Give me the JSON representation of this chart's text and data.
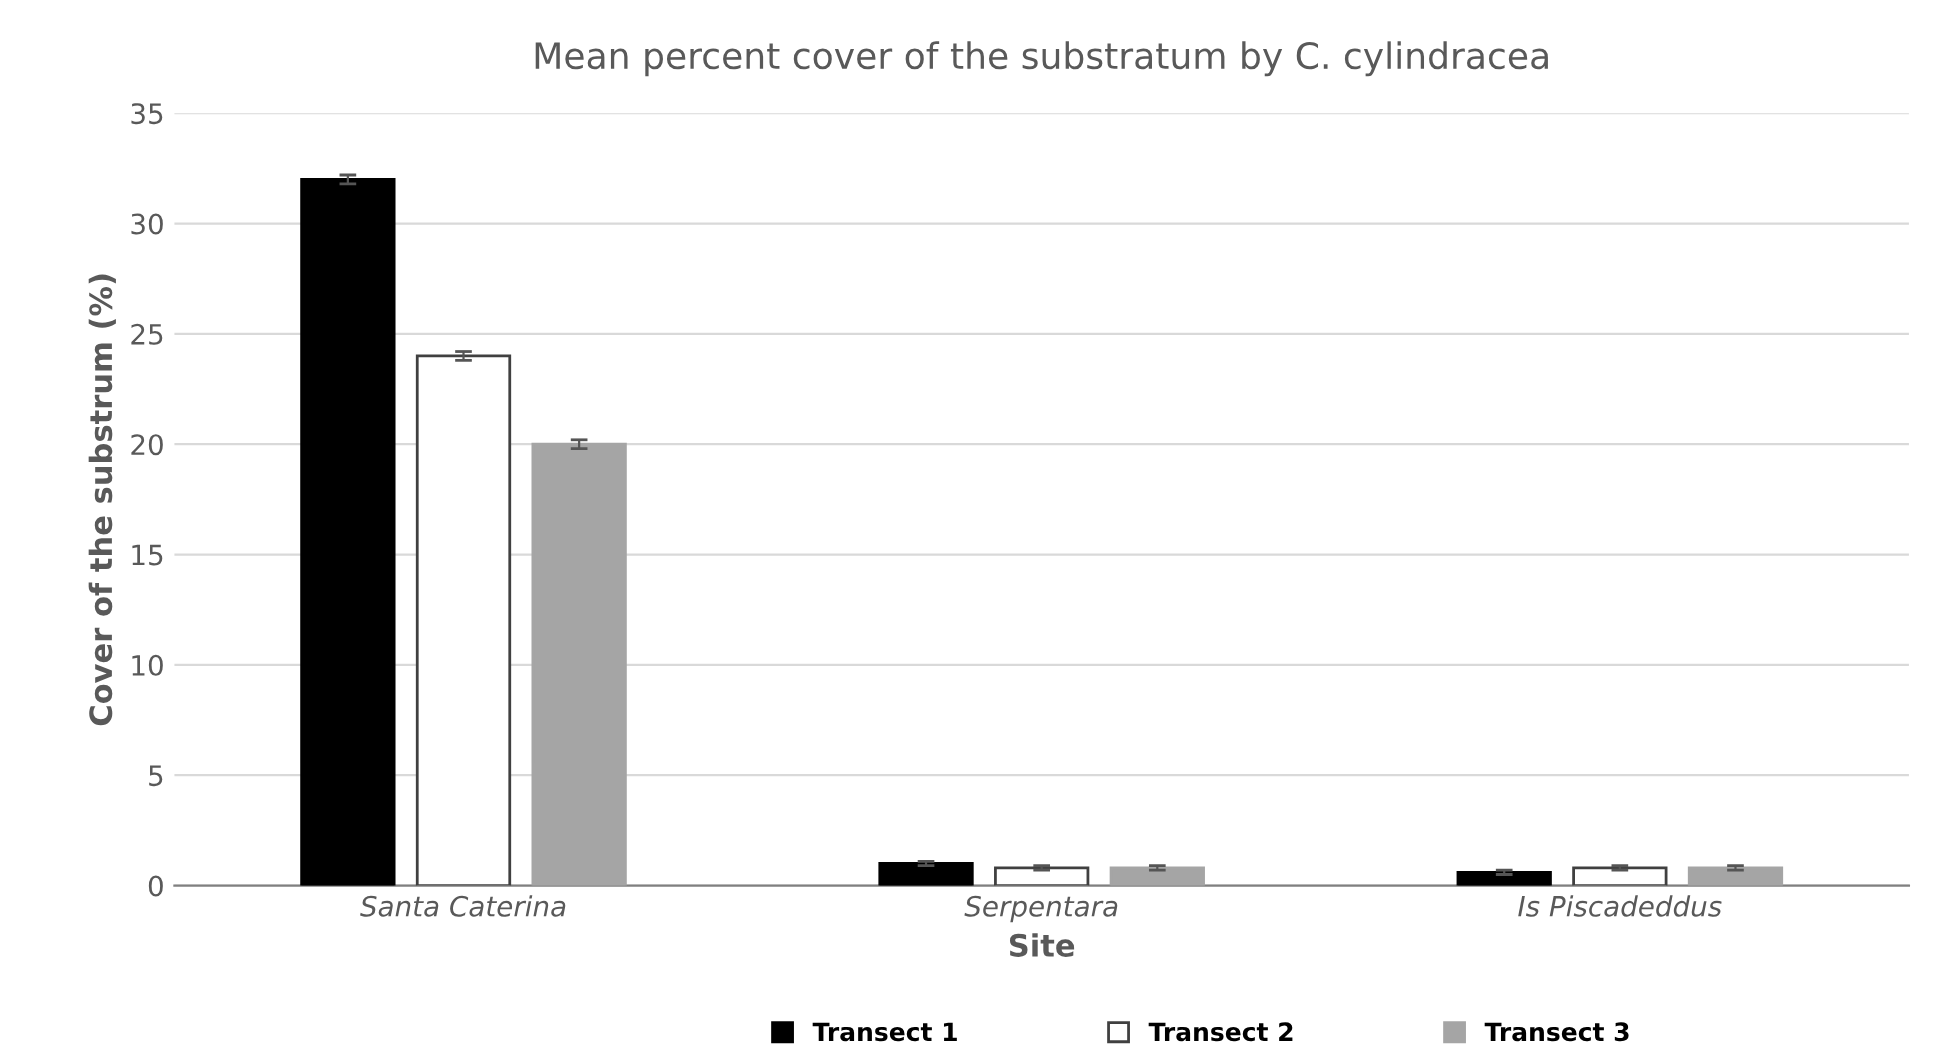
{
  "chart_data": {
    "type": "bar",
    "title": "Mean percent cover of the substratum by C. cylindracea",
    "xlabel": "Site",
    "ylabel": "Cover of the substrum (%)",
    "categories": [
      "Santa Caterina",
      "Serpentara",
      "Is Piscadeddus"
    ],
    "series": [
      {
        "name": "Transect 1",
        "color": "#000000",
        "values": [
          32,
          1.0,
          0.6
        ],
        "errors": [
          0.2,
          0.1,
          0.1
        ]
      },
      {
        "name": "Transect 2",
        "color": "#ffffff",
        "values": [
          24,
          0.8,
          0.8
        ],
        "errors": [
          0.2,
          0.1,
          0.1
        ]
      },
      {
        "name": "Transect 3",
        "color": "#a5a5a5",
        "values": [
          20,
          0.8,
          0.8
        ],
        "errors": [
          0.2,
          0.1,
          0.1
        ]
      }
    ],
    "ylim": [
      0,
      35
    ],
    "yticks": [
      0,
      5,
      10,
      15,
      20,
      25,
      30,
      35
    ],
    "grid": "y",
    "legend": "bottom"
  }
}
